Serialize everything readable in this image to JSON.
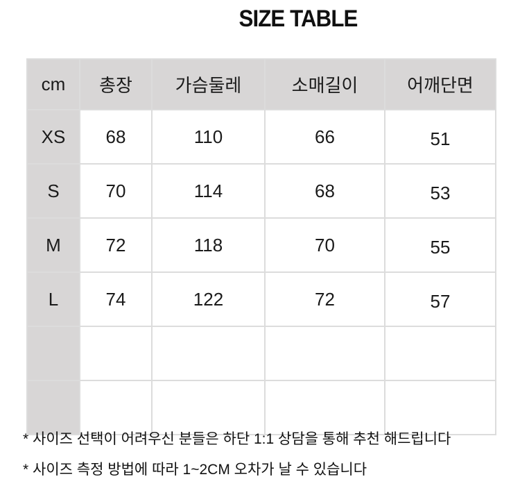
{
  "title": "SIZE TABLE",
  "table": {
    "headers": [
      "cm",
      "총장",
      "가슴둘레",
      "소매길이",
      "어깨단면"
    ],
    "rows": [
      [
        "XS",
        "68",
        "110",
        "66",
        "51"
      ],
      [
        "S",
        "70",
        "114",
        "68",
        "53"
      ],
      [
        "M",
        "72",
        "118",
        "70",
        "55"
      ],
      [
        "L",
        "74",
        "122",
        "72",
        "57"
      ],
      [
        "",
        "",
        "",
        "",
        ""
      ],
      [
        "",
        "",
        "",
        "",
        ""
      ]
    ]
  },
  "notes": [
    "* 사이즈 선택이 어려우신 분들은 하단 1:1 상담을 통해 추천 해드립니다",
    "* 사이즈 측정 방법에 따라 1~2CM 오차가 날 수 있습니다"
  ],
  "colors": {
    "header_bg": "#d8d6d6",
    "grid": "#dcdcdc"
  }
}
